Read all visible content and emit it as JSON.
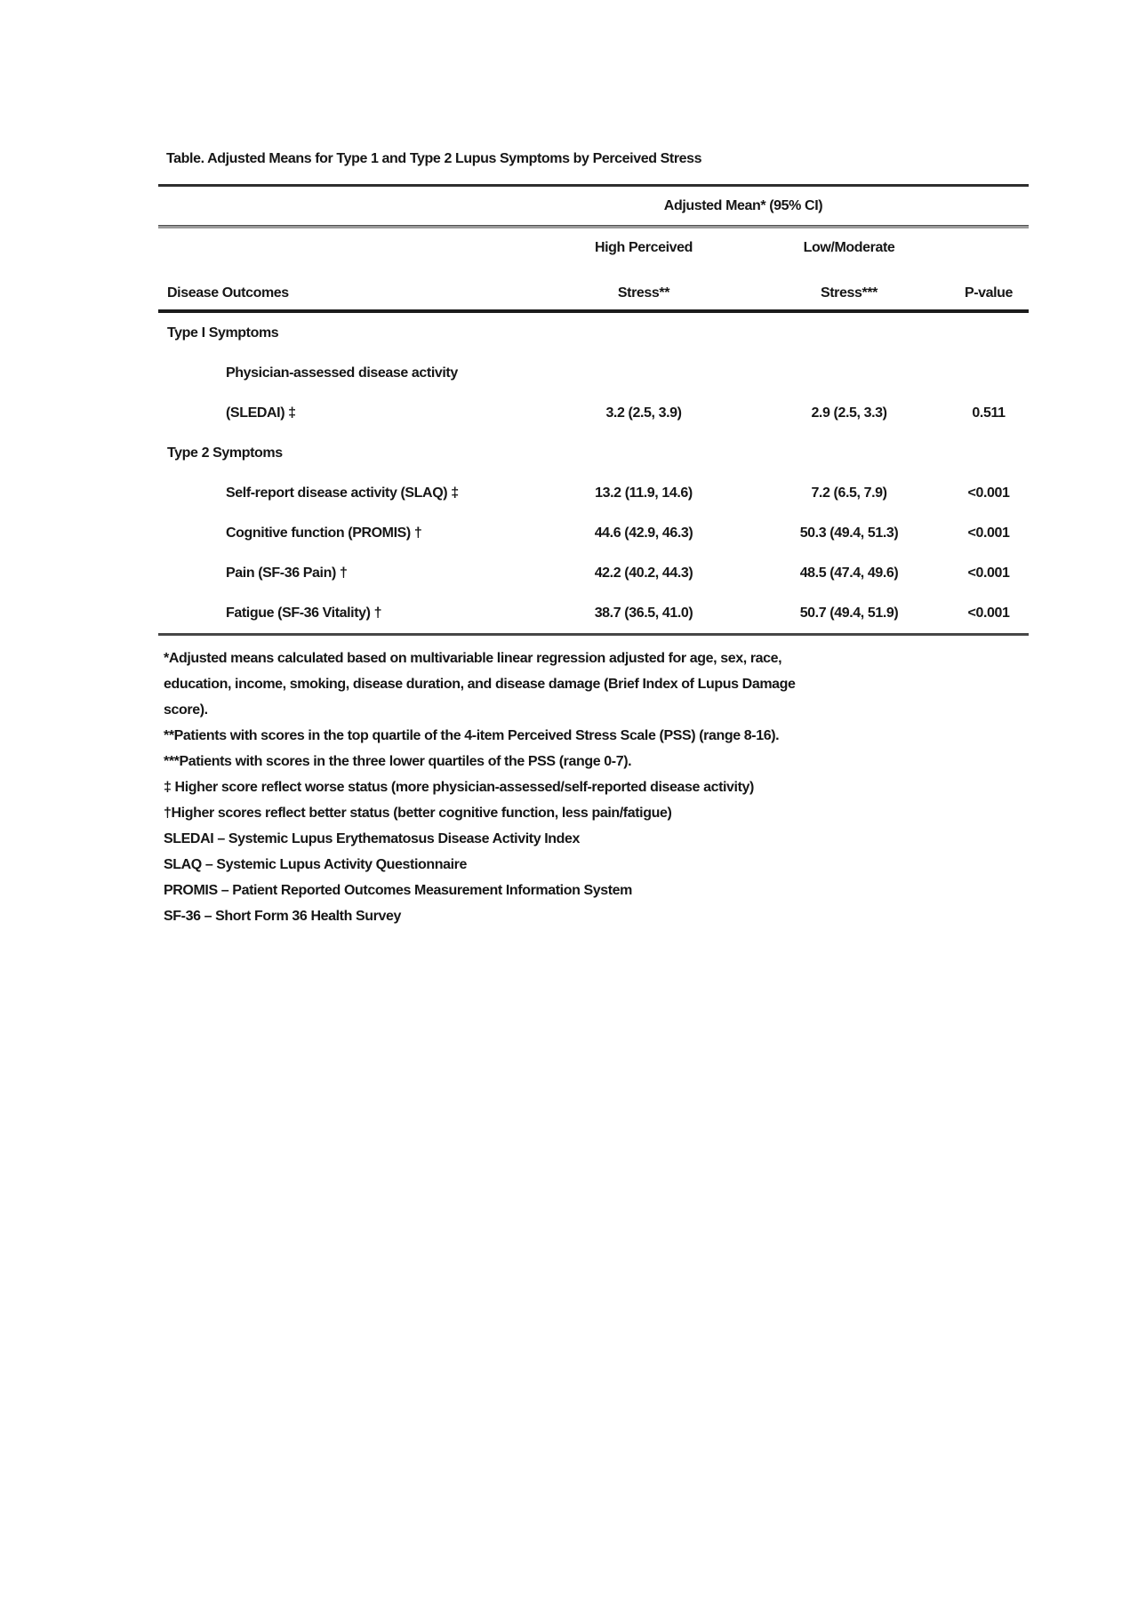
{
  "table": {
    "title": "Table. Adjusted Means for Type 1 and Type 2 Lupus Symptoms by Perceived Stress",
    "span_header": "Adjusted Mean* (95% CI)",
    "columns": {
      "outcome_header": "Disease Outcomes",
      "high_line1": "High Perceived",
      "high_line2": "Stress**",
      "low_line1": "Low/Moderate",
      "low_line2": "Stress***",
      "pvalue_header": "P-value"
    },
    "rows": [
      {
        "label": "Type I Symptoms",
        "high": "",
        "low": "",
        "p": ""
      },
      {
        "label": "Physician-assessed disease activity",
        "high": "",
        "low": "",
        "p": ""
      },
      {
        "label": "(SLEDAI) ‡",
        "high": "3.2 (2.5, 3.9)",
        "low": "2.9 (2.5, 3.3)",
        "p": "0.511"
      },
      {
        "label": "Type 2 Symptoms",
        "high": "",
        "low": "",
        "p": ""
      },
      {
        "label": "Self-report disease activity (SLAQ) ‡",
        "high": "13.2 (11.9, 14.6)",
        "low": "7.2 (6.5, 7.9)",
        "p": "<0.001"
      },
      {
        "label": "Cognitive function (PROMIS) †",
        "high": "44.6 (42.9, 46.3)",
        "low": "50.3 (49.4, 51.3)",
        "p": "<0.001"
      },
      {
        "label": "Pain (SF-36 Pain) †",
        "high": "42.2 (40.2, 44.3)",
        "low": "48.5 (47.4, 49.6)",
        "p": "<0.001"
      },
      {
        "label": "Fatigue (SF-36 Vitality) †",
        "high": "38.7 (36.5, 41.0)",
        "low": "50.7 (49.4, 51.9)",
        "p": "<0.001"
      }
    ],
    "footnote_lines": [
      "*Adjusted means calculated based on multivariable linear regression adjusted for age, sex, race,",
      "education, income, smoking, disease duration, and disease damage (Brief Index of Lupus Damage",
      "score).",
      "**Patients with scores in the top quartile of the 4-item Perceived Stress Scale (PSS) (range 8-16).",
      "***Patients with scores in the three lower quartiles of the PSS (range 0-7).",
      "‡ Higher score reflect worse status (more physician-assessed/self-reported disease activity)",
      "†Higher scores reflect better status (better cognitive function, less pain/fatigue)",
      "SLEDAI – Systemic Lupus Erythematosus Disease Activity Index",
      "SLAQ – Systemic Lupus Activity Questionnaire",
      "PROMIS – Patient Reported Outcomes Measurement Information System",
      "SF-36 – Short Form 36 Health Survey"
    ]
  },
  "colors": {
    "text": "#161616",
    "rule_dark": "#2e2e2e",
    "rule_gray": "#9a9a9a",
    "rule_black": "#1c1c1c",
    "background": "#ffffff"
  }
}
